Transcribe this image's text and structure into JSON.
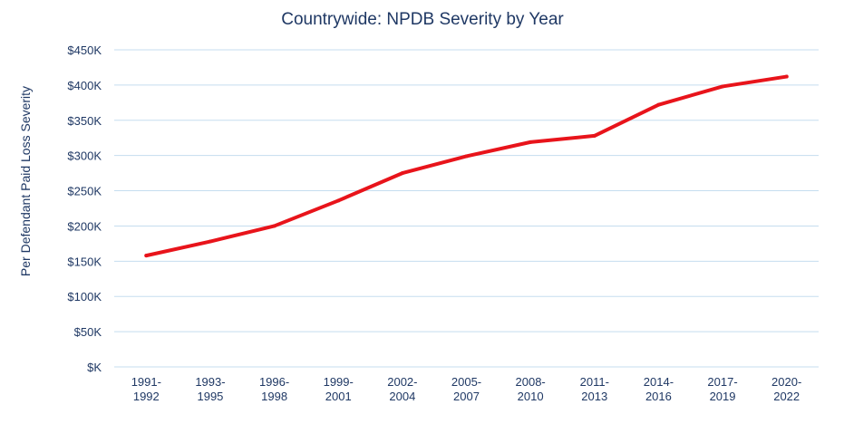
{
  "chart_data": {
    "type": "line",
    "title": "Countrywide: NPDB Severity by Year",
    "xlabel": "",
    "ylabel": "Per Defendant Paid Loss Severity",
    "categories": [
      [
        "1991-",
        "1992"
      ],
      [
        "1993-",
        "1995"
      ],
      [
        "1996-",
        "1998"
      ],
      [
        "1999-",
        "2001"
      ],
      [
        "2002-",
        "2004"
      ],
      [
        "2005-",
        "2007"
      ],
      [
        "2008-",
        "2010"
      ],
      [
        "2011-",
        "2013"
      ],
      [
        "2014-",
        "2016"
      ],
      [
        "2017-",
        "2019"
      ],
      [
        "2020-",
        "2022"
      ]
    ],
    "series": [
      {
        "values": [
          158,
          178,
          200,
          236,
          275,
          299,
          319,
          328,
          372,
          398,
          412
        ]
      }
    ],
    "ylim": [
      0,
      450
    ],
    "yticks": [
      0,
      50,
      100,
      150,
      200,
      250,
      300,
      350,
      400,
      450
    ],
    "ytick_labels": [
      "$K",
      "$50K",
      "$100K",
      "$150K",
      "$200K",
      "$250K",
      "$300K",
      "$350K",
      "$400K",
      "$450K"
    ],
    "grid": true,
    "legend": "none",
    "colors": {
      "line": "#e8141b",
      "grid": "#c5ddef",
      "text": "#1f3864"
    }
  }
}
